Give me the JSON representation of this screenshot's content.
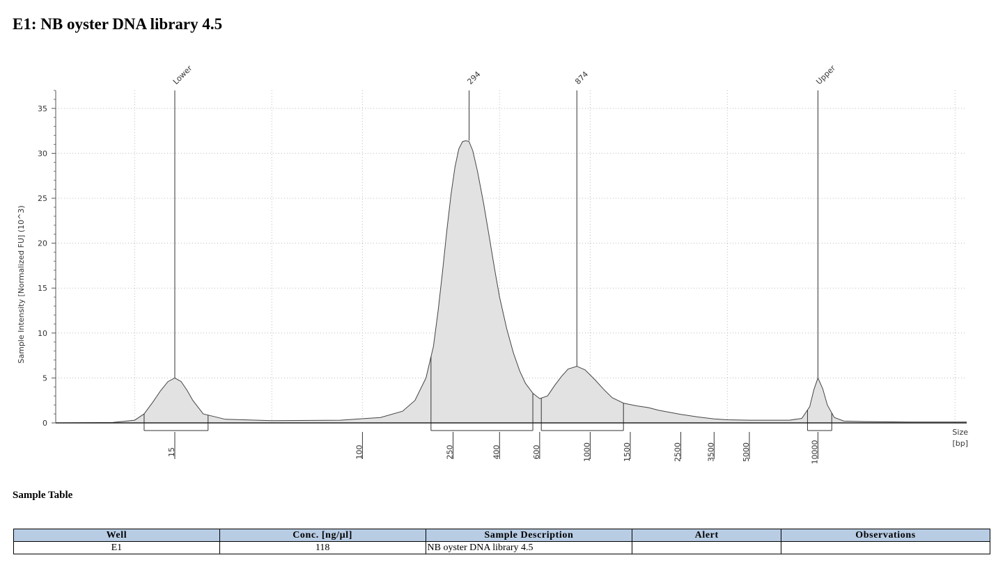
{
  "page_title": "E1: NB oyster DNA library 4.5",
  "chart_data": {
    "type": "area",
    "title": "E1: NB oyster DNA library 4.5",
    "ylabel": "Sample Intensity [Normalized FU] (10^3)",
    "xlabel": "Size [bp]",
    "xlabel_lines": [
      "Size",
      "[bp]"
    ],
    "ylim": [
      0,
      37
    ],
    "yticks": [
      0,
      5,
      10,
      15,
      20,
      25,
      30,
      35
    ],
    "x_scale": "log",
    "xlim": [
      4.5,
      45000
    ],
    "xticks": [
      15,
      100,
      250,
      400,
      600,
      1000,
      1500,
      2500,
      3500,
      5000,
      10000
    ],
    "grid": true,
    "fill_color": "#e2e2e2",
    "line_color": "#444444",
    "series": [
      {
        "x": [
          4.5,
          8,
          10,
          11,
          12,
          13,
          14,
          15,
          16,
          17,
          18,
          20,
          25,
          40,
          80,
          120,
          150,
          170,
          190,
          205,
          215,
          225,
          235,
          245,
          255,
          265,
          275,
          285,
          294,
          305,
          320,
          340,
          360,
          380,
          400,
          430,
          460,
          490,
          520,
          560,
          600,
          650,
          700,
          750,
          800,
          874,
          950,
          1050,
          1150,
          1250,
          1400,
          1600,
          1800,
          2000,
          2500,
          3000,
          3500,
          4000,
          5000,
          6000,
          7500,
          8500,
          9200,
          9600,
          10000,
          10500,
          11000,
          11800,
          13000,
          16000,
          25000,
          45000
        ],
        "y": [
          0,
          0.05,
          0.3,
          1.0,
          2.3,
          3.6,
          4.6,
          5.0,
          4.6,
          3.6,
          2.5,
          1.0,
          0.4,
          0.25,
          0.3,
          0.6,
          1.3,
          2.5,
          5.0,
          8.5,
          12.5,
          17.0,
          21.5,
          25.5,
          28.5,
          30.5,
          31.3,
          31.4,
          31.3,
          30.3,
          28.0,
          24.5,
          20.8,
          17.2,
          14.0,
          10.5,
          7.8,
          5.8,
          4.4,
          3.3,
          2.7,
          3.0,
          4.2,
          5.2,
          6.0,
          6.3,
          5.9,
          4.8,
          3.7,
          2.8,
          2.2,
          1.9,
          1.7,
          1.4,
          0.95,
          0.65,
          0.45,
          0.35,
          0.3,
          0.3,
          0.3,
          0.5,
          1.8,
          3.7,
          5.0,
          3.8,
          2.0,
          0.6,
          0.2,
          0.15,
          0.1,
          0.1
        ]
      }
    ],
    "peaks": [
      {
        "label": "Lower",
        "x": 15,
        "y": 5.0
      },
      {
        "label": "294",
        "x": 294,
        "y": 31.4
      },
      {
        "label": "874",
        "x": 874,
        "y": 6.3
      },
      {
        "label": "Upper",
        "x": 10000,
        "y": 5.0
      }
    ],
    "regions": [
      {
        "from": 11,
        "to": 21
      },
      {
        "from": 200,
        "to": 560
      },
      {
        "from": 610,
        "to": 1400
      },
      {
        "from": 9000,
        "to": 11500
      }
    ]
  },
  "sample_table": {
    "title": "Sample Table",
    "headers": [
      "Well",
      "Conc. [ng/µl]",
      "Sample Description",
      "Alert",
      "Observations"
    ],
    "rows": [
      [
        "E1",
        "118",
        "NB oyster DNA library 4.5",
        "",
        ""
      ]
    ]
  }
}
